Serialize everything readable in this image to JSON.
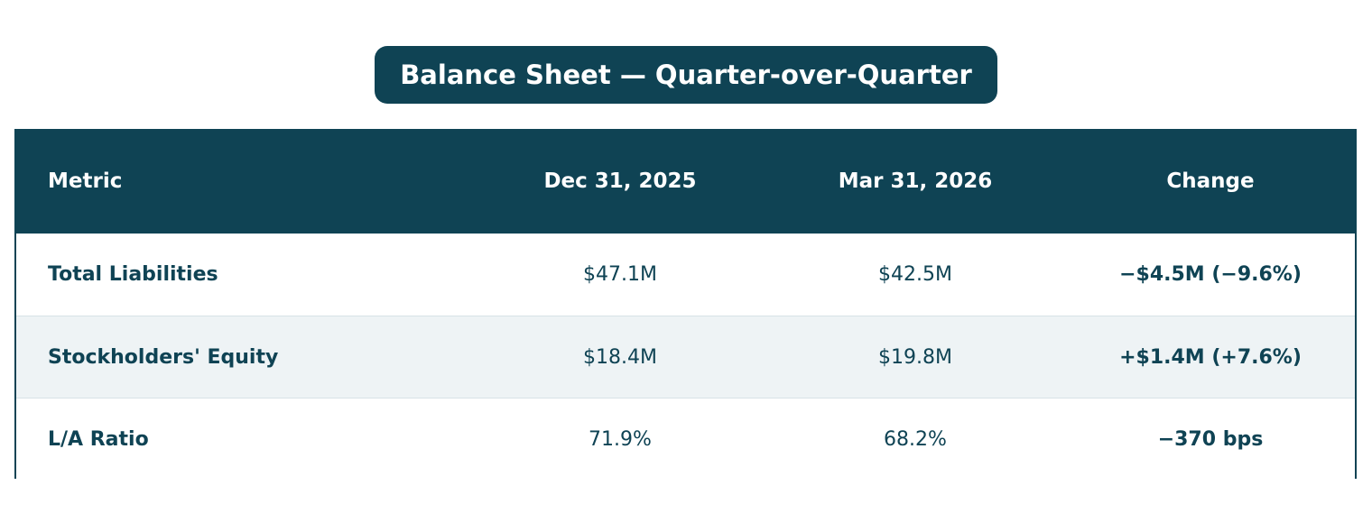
{
  "title": "Balance Sheet — Quarter-over-Quarter",
  "colors": {
    "header_bg": "#0f4354",
    "header_text": "#ffffff",
    "body_text": "#0f4354",
    "row_alt_bg": "#eef3f5",
    "row_bg": "#ffffff"
  },
  "table": {
    "headers": {
      "metric": "Metric",
      "prev": "Dec 31, 2025",
      "curr": "Mar 31, 2026",
      "change": "Change"
    },
    "rows": [
      {
        "metric": "Total Liabilities",
        "prev": "$47.1M",
        "curr": "$42.5M",
        "change": "−$4.5M (−9.6%)"
      },
      {
        "metric": "Stockholders' Equity",
        "prev": "$18.4M",
        "curr": "$19.8M",
        "change": "+$1.4M (+7.6%)"
      },
      {
        "metric": "L/A Ratio",
        "prev": "71.9%",
        "curr": "68.2%",
        "change": "−370 bps"
      }
    ]
  },
  "chart_data": {
    "type": "table",
    "title": "Balance Sheet — Quarter-over-Quarter",
    "columns": [
      "Metric",
      "Dec 31, 2025",
      "Mar 31, 2026",
      "Change"
    ],
    "rows": [
      [
        "Total Liabilities",
        "$47.1M",
        "$42.5M",
        "−$4.5M (−9.6%)"
      ],
      [
        "Stockholders' Equity",
        "$18.4M",
        "$19.8M",
        "+$1.4M (+7.6%)"
      ],
      [
        "L/A Ratio",
        "71.9%",
        "68.2%",
        "−370 bps"
      ]
    ],
    "values": {
      "Total Liabilities": {
        "Dec 31, 2025": 47.1,
        "Mar 31, 2026": 42.5,
        "change_abs": -4.5,
        "change_pct": -9.6,
        "unit": "$M"
      },
      "Stockholders' Equity": {
        "Dec 31, 2025": 18.4,
        "Mar 31, 2026": 19.8,
        "change_abs": 1.4,
        "change_pct": 7.6,
        "unit": "$M"
      },
      "L/A Ratio": {
        "Dec 31, 2025": 71.9,
        "Mar 31, 2026": 68.2,
        "change_bps": -370,
        "unit": "%"
      }
    }
  }
}
